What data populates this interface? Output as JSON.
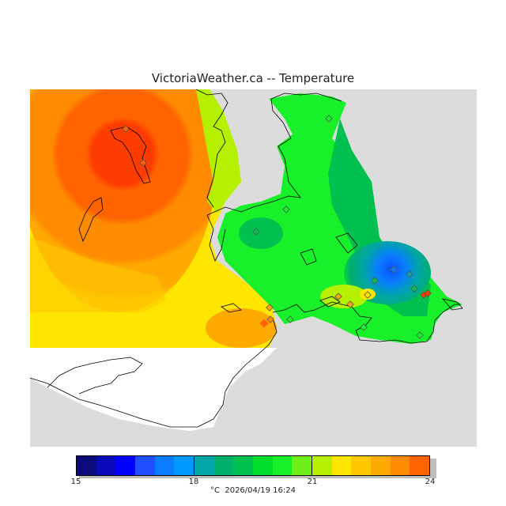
{
  "title": "VictoriaWeather.ca -- Temperature",
  "colorbar": {
    "min_label": "15",
    "mid1_label": "18",
    "mid2_label": "21",
    "max_label": "24",
    "range": [
      15,
      24
    ],
    "colors": [
      "#0b0b7a",
      "#0a0ab8",
      "#0000ff",
      "#1e50ff",
      "#0a7dff",
      "#0099ff",
      "#00a5a5",
      "#00b06a",
      "#00c050",
      "#00dc2a",
      "#18f02a",
      "#6cf018",
      "#b4f000",
      "#ffe600",
      "#ffc800",
      "#ffaa00",
      "#ff8c00",
      "#ff6400",
      "#ff3c00",
      "#ff1500"
    ]
  },
  "footer": {
    "unit": "°C",
    "datetime": "2026/04/19 16:24"
  },
  "map": {
    "background_color": "#dcdcdc",
    "warm_center_color": "#ff3c00",
    "cool_spot_color": "#0a7dff"
  }
}
